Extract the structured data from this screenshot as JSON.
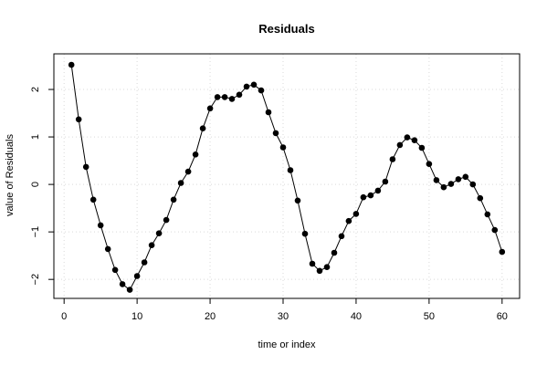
{
  "chart_data": {
    "type": "line",
    "title": "Residuals",
    "xlabel": "time or index",
    "ylabel": "value of Residuals",
    "xlim": [
      -1.4,
      62.4
    ],
    "ylim": [
      -2.4,
      2.75
    ],
    "xticks": [
      0,
      10,
      20,
      30,
      40,
      50,
      60
    ],
    "yticks": [
      -2,
      -1,
      0,
      1,
      2
    ],
    "xtick_labels": [
      "0",
      "10",
      "20",
      "30",
      "40",
      "50",
      "60"
    ],
    "ytick_labels": [
      "−2",
      "−1",
      "0",
      "1",
      "2"
    ],
    "grid": true,
    "markers": "filled-circle",
    "series": [
      {
        "x": [
          1,
          2,
          3,
          4,
          5,
          6,
          7,
          8,
          9,
          10,
          11,
          12,
          13,
          14,
          15,
          16,
          17,
          18,
          19,
          20,
          21,
          22,
          23,
          24,
          25,
          26,
          27,
          28,
          29,
          30,
          31,
          32,
          33,
          34,
          35,
          36,
          37,
          38,
          39,
          40,
          41,
          42,
          43,
          44,
          45,
          46,
          47,
          48,
          49,
          50,
          51,
          52,
          53,
          54,
          55,
          56,
          57,
          58,
          59,
          60
        ],
        "values": [
          2.52,
          1.37,
          0.37,
          -0.32,
          -0.86,
          -1.36,
          -1.8,
          -2.1,
          -2.22,
          -1.93,
          -1.64,
          -1.28,
          -1.03,
          -0.75,
          -0.32,
          0.03,
          0.27,
          0.63,
          1.18,
          1.6,
          1.84,
          1.84,
          1.8,
          1.89,
          2.06,
          2.1,
          1.98,
          1.52,
          1.08,
          0.78,
          0.3,
          -0.34,
          -1.04,
          -1.67,
          -1.82,
          -1.74,
          -1.44,
          -1.09,
          -0.77,
          -0.62,
          -0.27,
          -0.23,
          -0.13,
          0.06,
          0.53,
          0.83,
          0.99,
          0.93,
          0.77,
          0.43,
          0.09,
          -0.06,
          0.01,
          0.11,
          0.16,
          0.0,
          -0.29,
          -0.63,
          -0.96,
          -1.42
        ]
      }
    ]
  }
}
